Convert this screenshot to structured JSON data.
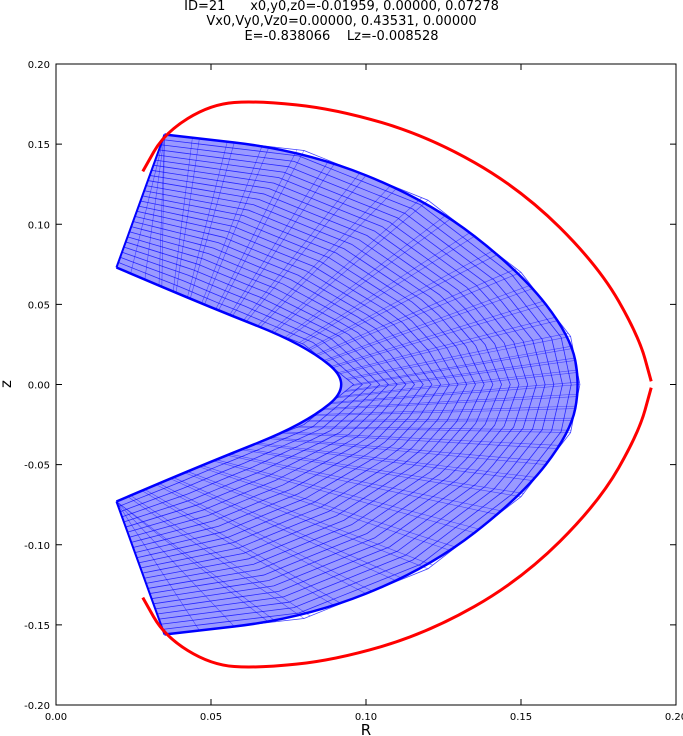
{
  "chart_data": {
    "type": "line",
    "title_lines": [
      "ID=21      x0,y0,z0=-0.01959, 0.00000, 0.07278",
      "Vx0,Vy0,Vz0=0.00000, 0.43531, 0.00000",
      "E=-0.838066    Lz=-0.008528"
    ],
    "xlabel": "R",
    "ylabel": "z",
    "xlim": [
      0.0,
      0.2
    ],
    "ylim": [
      -0.2,
      0.2
    ],
    "xticks": [
      "0.00",
      "0.05",
      "0.10",
      "0.15",
      "0.20"
    ],
    "yticks": [
      "0.20",
      "0.15",
      "0.10",
      "0.05",
      "0.00",
      "-0.05",
      "-0.10",
      "-0.15",
      "-0.20"
    ],
    "grid": false,
    "colors": {
      "orbit": "#0000ff",
      "zero_velocity_curve": "#ff0000"
    },
    "orbit_region": {
      "inner_boundary": [
        [
          0.0195,
          0.073
        ],
        [
          0.05,
          0.048
        ],
        [
          0.08,
          0.025
        ],
        [
          0.096,
          0.0
        ],
        [
          0.08,
          -0.025
        ],
        [
          0.05,
          -0.048
        ],
        [
          0.0195,
          -0.073
        ]
      ],
      "outer_boundary": [
        [
          0.035,
          0.156
        ],
        [
          0.08,
          0.146
        ],
        [
          0.12,
          0.115
        ],
        [
          0.15,
          0.07
        ],
        [
          0.166,
          0.03
        ],
        [
          0.169,
          0.0
        ],
        [
          0.166,
          -0.03
        ],
        [
          0.15,
          -0.07
        ],
        [
          0.12,
          -0.115
        ],
        [
          0.08,
          -0.146
        ],
        [
          0.035,
          -0.156
        ]
      ]
    },
    "series": [
      {
        "values": [
          [
            0.028,
            0.133
          ],
          [
            0.035,
            0.157
          ],
          [
            0.05,
            0.175
          ],
          [
            0.065,
            0.177
          ],
          [
            0.09,
            0.172
          ],
          [
            0.12,
            0.155
          ],
          [
            0.15,
            0.122
          ],
          [
            0.175,
            0.074
          ],
          [
            0.188,
            0.03
          ],
          [
            0.192,
            0.002
          ]
        ]
      },
      {
        "values": [
          [
            0.192,
            -0.002
          ],
          [
            0.188,
            -0.03
          ],
          [
            0.175,
            -0.074
          ],
          [
            0.15,
            -0.122
          ],
          [
            0.12,
            -0.155
          ],
          [
            0.09,
            -0.172
          ],
          [
            0.065,
            -0.177
          ],
          [
            0.05,
            -0.175
          ],
          [
            0.035,
            -0.157
          ],
          [
            0.028,
            -0.133
          ]
        ]
      }
    ]
  }
}
